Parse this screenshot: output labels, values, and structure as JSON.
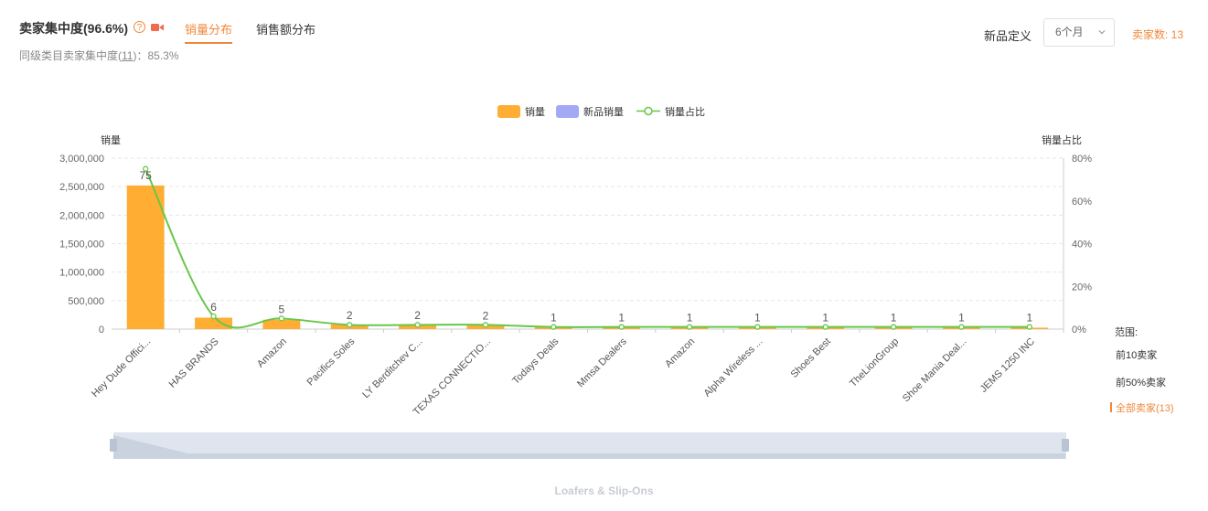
{
  "header": {
    "title": "卖家集中度(96.6%)",
    "help_icon": "question-circle-icon",
    "video_icon": "video-camera-icon",
    "tabs": [
      {
        "label": "销量分布",
        "active": true
      },
      {
        "label": "销售额分布",
        "active": false
      }
    ],
    "peer_prefix": "同级类目卖家集中度(",
    "peer_count": "11",
    "peer_suffix": ")：85.3%"
  },
  "controls": {
    "new_def_label": "新品定义",
    "period_value": "6个月",
    "seller_count": "卖家数: 13"
  },
  "range": {
    "title": "范围:",
    "options": [
      {
        "label": "前10卖家",
        "active": false
      },
      {
        "label": "前50%卖家",
        "active": false
      },
      {
        "label": "全部卖家(13)",
        "active": true
      }
    ]
  },
  "footer": {
    "category": "Loafers & Slip-Ons"
  },
  "colors": {
    "accent": "#f0883a",
    "bar": "#ffad33",
    "new_bar": "#a3a9f2",
    "line": "#67c74a"
  },
  "chart_data": {
    "type": "bar",
    "legend": [
      "销量",
      "新品销量",
      "销量占比"
    ],
    "ylabel_left": "销量",
    "ylabel_right": "销量占比",
    "left_ticks": [
      "0",
      "500,000",
      "1,000,000",
      "1,500,000",
      "2,000,000",
      "2,500,000",
      "3,000,000"
    ],
    "right_ticks": [
      "0%",
      "20%",
      "40%",
      "60%",
      "80%"
    ],
    "ylim_left": [
      0,
      3000000
    ],
    "ylim_right": [
      0,
      80
    ],
    "categories": [
      "Hey Dude Offici...",
      "HAS BRANDS",
      "Amazon",
      "Pacifics Soles",
      "LY Berditchev C...",
      "TEXAS CONNECTIO...",
      "Todays Deals",
      "Mmsa Dealers",
      "Amazon",
      "Alpha Wireless ...",
      "Shoes Best",
      "TheLionGroup",
      "Shoe Mania Deal...",
      "JEMS 1250 INC"
    ],
    "series": [
      {
        "name": "销量",
        "values": [
          2520000,
          200000,
          165000,
          80000,
          80000,
          75000,
          40000,
          40000,
          35000,
          35000,
          35000,
          35000,
          35000,
          25000
        ]
      },
      {
        "name": "新品销量",
        "values": [
          0,
          0,
          0,
          0,
          0,
          0,
          0,
          0,
          0,
          0,
          0,
          0,
          0,
          0
        ]
      },
      {
        "name": "销量占比",
        "values": [
          75,
          6,
          5,
          2,
          2,
          2,
          1,
          1,
          1,
          1,
          1,
          1,
          1,
          1
        ]
      }
    ],
    "data_labels": [
      "75",
      "6",
      "5",
      "2",
      "2",
      "2",
      "1",
      "1",
      "1",
      "1",
      "1",
      "1",
      "1",
      "1"
    ],
    "grid": true
  }
}
